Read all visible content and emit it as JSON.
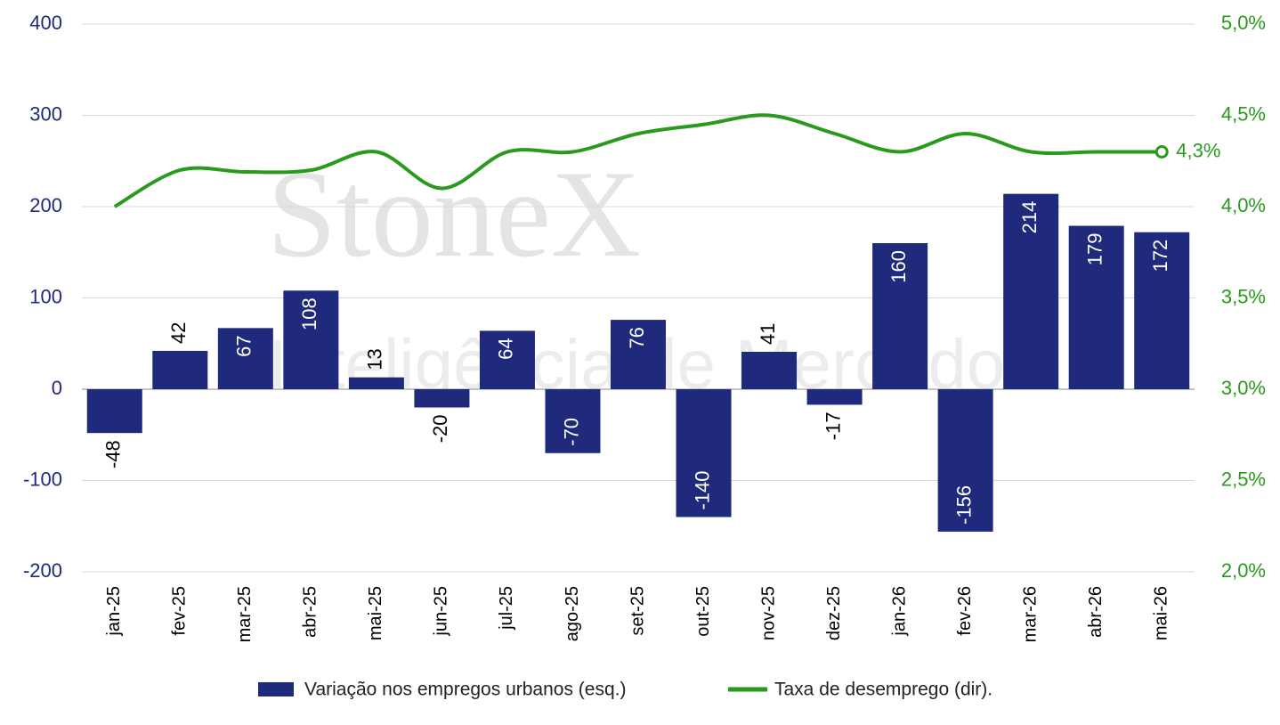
{
  "chart_data": {
    "type": "bar-line",
    "categories": [
      "jan-25",
      "fev-25",
      "mar-25",
      "abr-25",
      "mai-25",
      "jun-25",
      "jul-25",
      "ago-25",
      "set-25",
      "out-25",
      "nov-25",
      "dez-25",
      "jan-26",
      "fev-26",
      "mar-26",
      "abr-26",
      "mai-26"
    ],
    "series": [
      {
        "name": "Variação nos empregos urbanos (esq.)",
        "type": "bar",
        "color": "#1f2a7c",
        "values": [
          -48,
          42,
          67,
          108,
          13,
          -20,
          64,
          -70,
          76,
          -140,
          41,
          -17,
          160,
          -156,
          214,
          179,
          172
        ]
      },
      {
        "name": "Taxa de desemprego (dir).",
        "type": "line",
        "axis": "y2",
        "color": "#2a9a1e",
        "values": [
          4.0,
          4.2,
          4.19,
          4.2,
          4.3,
          4.1,
          4.3,
          4.3,
          4.4,
          4.45,
          4.5,
          4.4,
          4.3,
          4.4,
          4.3,
          4.3,
          4.3
        ],
        "value_labels": [
          null,
          null,
          null,
          null,
          null,
          null,
          null,
          null,
          null,
          null,
          null,
          null,
          null,
          null,
          null,
          null,
          "4,3%"
        ]
      }
    ],
    "ylim": [
      -200,
      400
    ],
    "yticks": [
      -200,
      -100,
      0,
      100,
      200,
      300,
      400
    ],
    "y2lim": [
      2.0,
      5.0
    ],
    "y2ticks": [
      {
        "value": 2.0,
        "label": "2,0%"
      },
      {
        "value": 2.5,
        "label": "2,5%"
      },
      {
        "value": 3.0,
        "label": "3,0%"
      },
      {
        "value": 3.5,
        "label": "3,5%"
      },
      {
        "value": 4.0,
        "label": "4,0%"
      },
      {
        "value": 4.5,
        "label": "4,5%"
      },
      {
        "value": 5.0,
        "label": "5,0%"
      }
    ],
    "grid": true,
    "watermark": {
      "brand": "StoneX",
      "tagline": "Inteligência de Mercado"
    }
  }
}
